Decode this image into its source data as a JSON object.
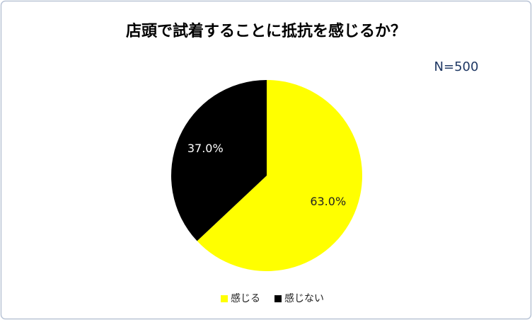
{
  "chart_data": {
    "type": "pie",
    "title": "店頭で試着することに抵抗を感じるか？",
    "annotation": "N=500",
    "categories": [
      "感じる",
      "感じない"
    ],
    "values": [
      63.0,
      37.0
    ],
    "value_labels": [
      "63.0%",
      "37.0%"
    ],
    "colors": [
      "#ffff00",
      "#000000"
    ],
    "legend": "bottom"
  }
}
